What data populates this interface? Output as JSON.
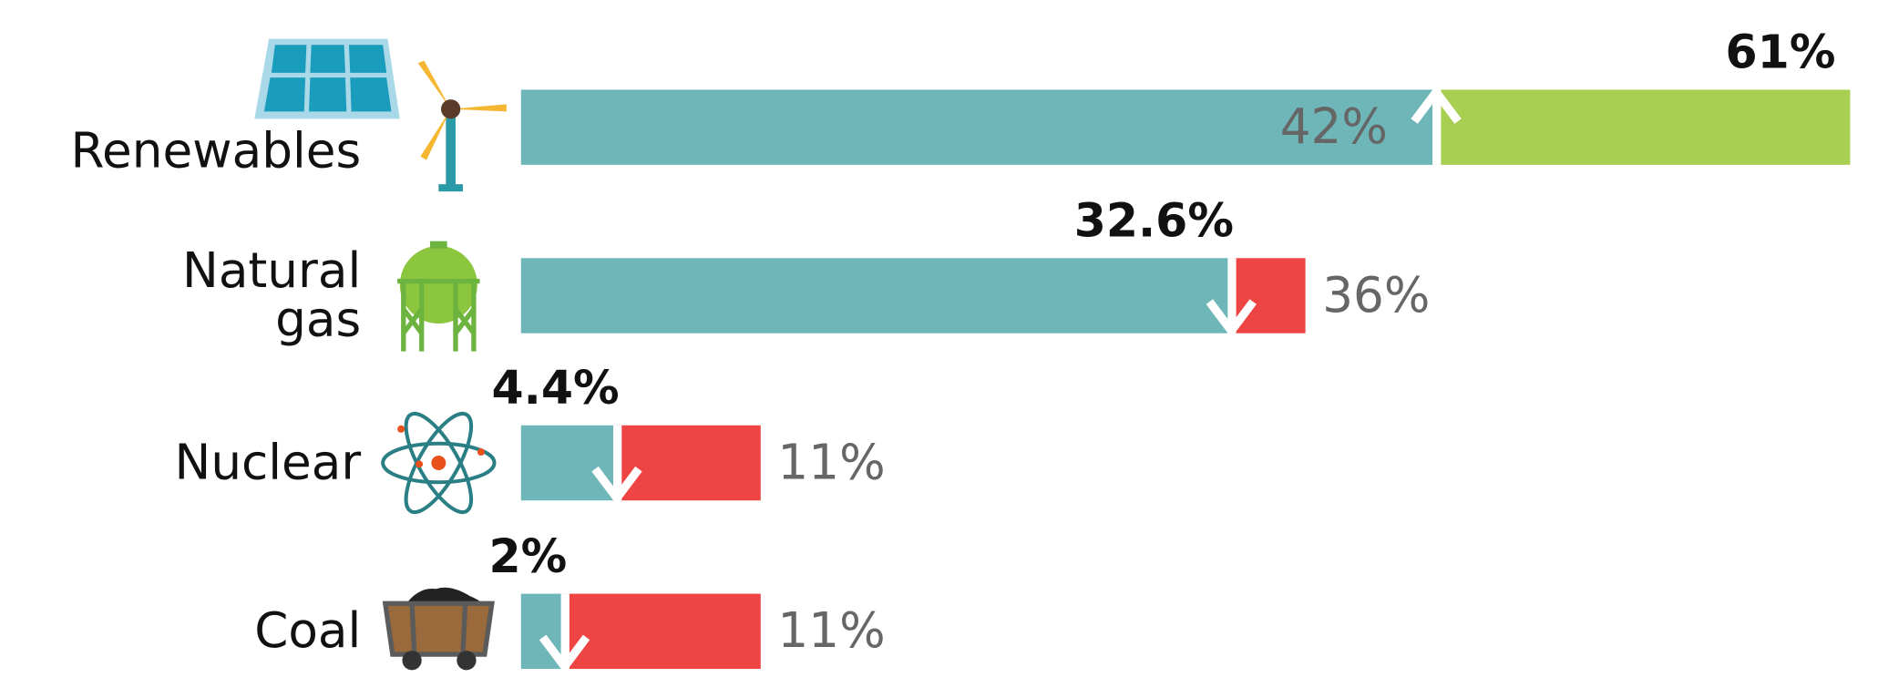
{
  "chart_data": {
    "type": "change-bar",
    "categories": [
      "Renewables",
      "Natural gas",
      "Nuclear",
      "Coal"
    ],
    "series": [
      {
        "color": "#6fb6b9",
        "values": [
          42,
          36,
          11,
          11
        ],
        "value_labels": [
          "42%",
          "36%",
          "11%",
          "11%"
        ]
      },
      {
        "values": [
          61,
          32.6,
          4.4,
          2
        ],
        "value_labels": [
          "61%",
          "32.6%",
          "4.4%",
          "2%"
        ]
      }
    ],
    "increase_color": "#a8cf52",
    "decrease_color": "#ef4444",
    "xlim": [
      0,
      61
    ]
  }
}
